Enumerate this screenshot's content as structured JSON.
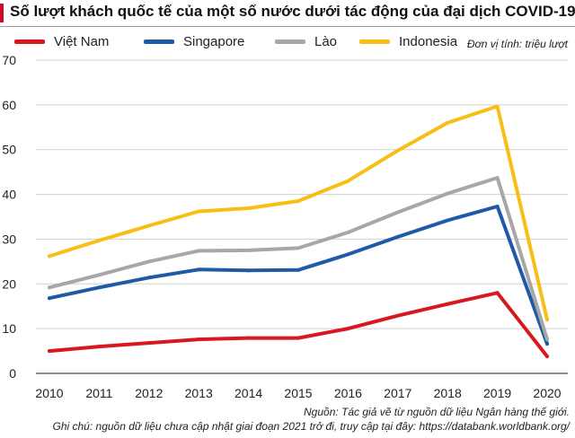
{
  "title": "Số lượt khách quốc tế của một số nước dưới tác động của đại dịch COVID-19",
  "unit_note": "Đơn vị tính: triệu lượt",
  "source": "Nguồn: Tác giả vẽ từ nguồn dữ liệu Ngân hàng thế giới.",
  "note": "Ghi chú: nguồn dữ liệu chưa cập nhật giai đoạn 2021 trở đi, truy cập tại đây: https://databank.worldbank.org/",
  "colors": {
    "accent": "#c8102e",
    "grid": "#d0d0d0",
    "axis": "#444444"
  },
  "chart_data": {
    "type": "line",
    "title": "Số lượt khách quốc tế của một số nước dưới tác động của đại dịch COVID-19",
    "xlabel": "",
    "ylabel": "Đơn vị tính: triệu lượt",
    "x": [
      "2010",
      "2011",
      "2012",
      "2013",
      "2014",
      "2015",
      "2016",
      "2017",
      "2018",
      "2019",
      "2020"
    ],
    "yticks": [
      "0",
      "10",
      "20",
      "30",
      "40",
      "50",
      "60",
      "70"
    ],
    "ylim": [
      0,
      70
    ],
    "grid": true,
    "legend": "top",
    "series": [
      {
        "name": "Việt Nam",
        "color": "#d7191f",
        "values": [
          5.0,
          6.0,
          6.8,
          7.6,
          7.9,
          7.9,
          10.0,
          12.9,
          15.5,
          18.0,
          3.8
        ]
      },
      {
        "name": "Singapore",
        "color": "#1f5aa6",
        "values": [
          16.8,
          19.2,
          21.4,
          23.2,
          23.0,
          23.1,
          26.6,
          30.5,
          34.2,
          37.3,
          6.6
        ]
      },
      {
        "name": "Lào",
        "color": "#a7a7a7",
        "values": [
          19.2,
          22.0,
          25.0,
          27.4,
          27.5,
          28.0,
          31.5,
          36.0,
          40.2,
          43.7,
          7.6
        ]
      },
      {
        "name": "Indonesia",
        "color": "#f7bf16",
        "values": [
          26.2,
          29.7,
          33.0,
          36.2,
          36.9,
          38.5,
          43.0,
          49.8,
          56.0,
          59.7,
          12.0
        ]
      }
    ]
  }
}
